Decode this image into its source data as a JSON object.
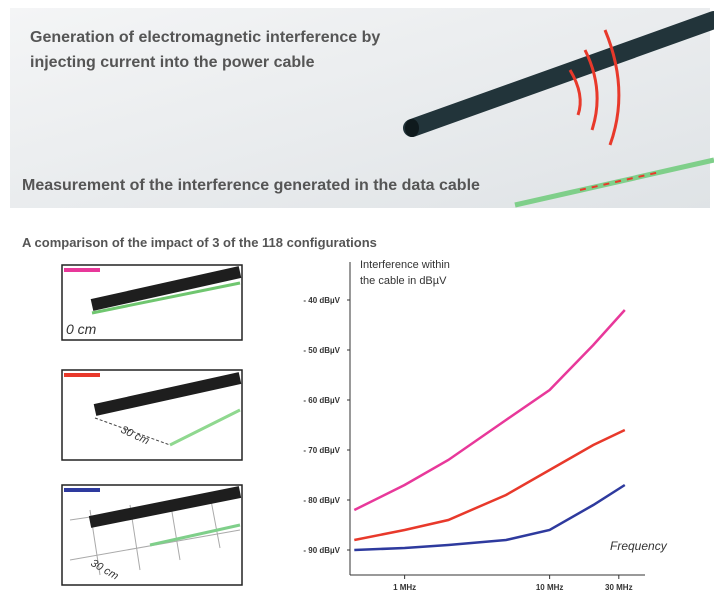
{
  "header": {
    "title_line1": "Generation of electromagnetic interference by",
    "title_line2": "injecting current into the power cable",
    "measurement": "Measurement of the interference generated in the data cable"
  },
  "section_title": "A comparison of the impact of 3 of the 118 configurations",
  "panels": [
    {
      "label": "0 cm"
    },
    {
      "label": "30 cm"
    },
    {
      "label": "30 cm"
    }
  ],
  "chart_data": {
    "type": "line",
    "y_label_line1": "Interference within",
    "y_label_line2": "the cable in dBµV",
    "x_label": "Frequency",
    "log_x": true,
    "x": [
      0.45,
      1,
      2,
      5,
      10,
      20,
      33
    ],
    "series": [
      {
        "color": "#e8389a",
        "values": [
          -82,
          -77,
          -72,
          -64,
          -58,
          -49,
          -42
        ]
      },
      {
        "color": "#e8392b",
        "values": [
          -88,
          -86,
          -84,
          -79,
          -74,
          -69,
          -66
        ]
      },
      {
        "color": "#2e3a9e",
        "values": [
          -90,
          -89.6,
          -89,
          -88,
          -86,
          -81,
          -77
        ]
      }
    ],
    "xlim": [
      0.42,
      42
    ],
    "xticks": [
      {
        "value": 1,
        "label": "1 MHz"
      },
      {
        "value": 10,
        "label": "10 MHz"
      },
      {
        "value": 30,
        "label": "30 MHz"
      }
    ],
    "ylim": [
      -94,
      -34
    ],
    "yticks": [
      {
        "value": -40,
        "label": "- 40 dBµV"
      },
      {
        "value": -50,
        "label": "- 50 dBµV"
      },
      {
        "value": -60,
        "label": "- 60 dBµV"
      },
      {
        "value": -70,
        "label": "- 70 dBµV"
      },
      {
        "value": -80,
        "label": "- 80 dBµV"
      },
      {
        "value": -90,
        "label": "- 90 dBµV"
      }
    ]
  }
}
